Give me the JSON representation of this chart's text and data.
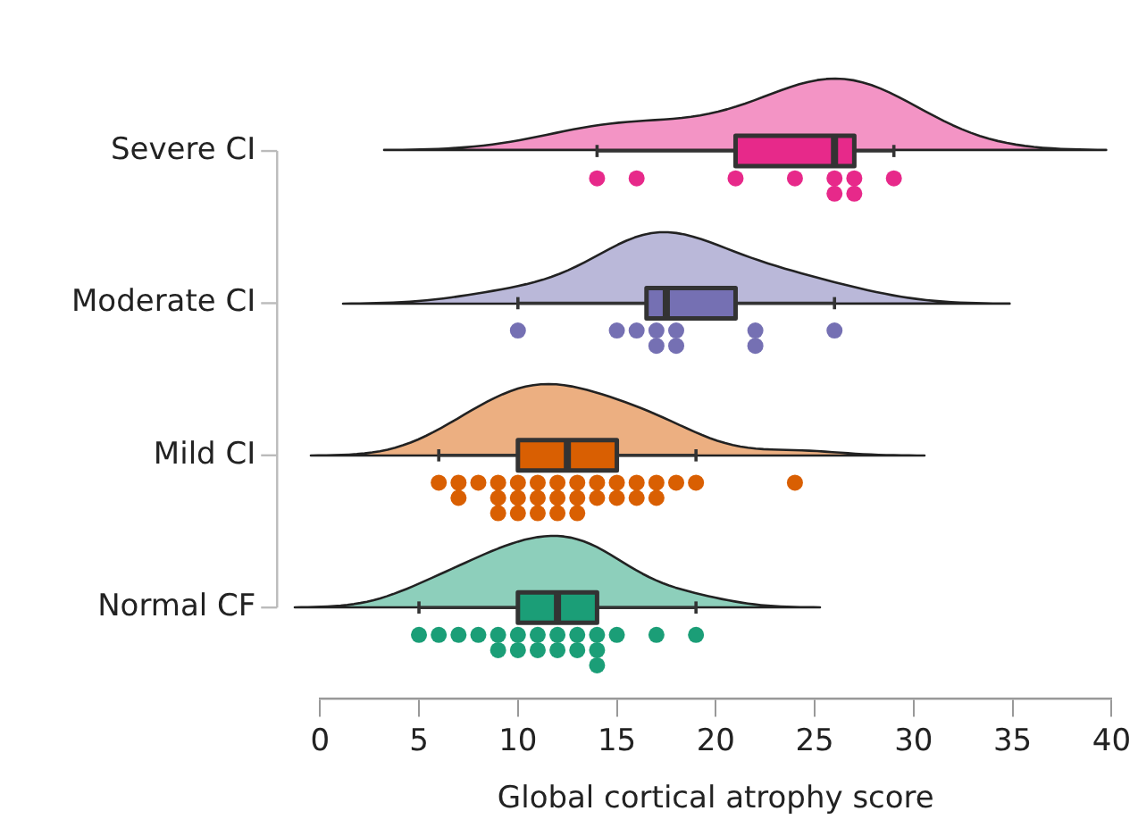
{
  "chart_data": {
    "type": "box",
    "orientation": "horizontal",
    "xlabel": "Global cortical atrophy score",
    "categories": [
      "Severe CI",
      "Moderate CI",
      "Mild CI",
      "Normal CF"
    ],
    "xlim": [
      0,
      40
    ],
    "xticks": [
      0,
      5,
      10,
      15,
      20,
      25,
      30,
      35,
      40
    ],
    "colors": [
      "#e7298a",
      "#7570b3",
      "#d95f02",
      "#1b9e77"
    ],
    "boxes": [
      {
        "low": 14,
        "q1": 21,
        "median": 26,
        "q3": 27,
        "high": 29
      },
      {
        "low": 10,
        "q1": 16.5,
        "median": 17.5,
        "q3": 21,
        "high": 26
      },
      {
        "low": 6,
        "q1": 10,
        "median": 12.5,
        "q3": 15,
        "high": 19
      },
      {
        "low": 5,
        "q1": 10,
        "median": 12,
        "q3": 14,
        "high": 19
      }
    ],
    "series": [
      {
        "type": "scatter",
        "color": "#e7298a",
        "x": [
          "Severe CI",
          "Severe CI",
          "Severe CI",
          "Severe CI",
          "Severe CI",
          "Severe CI",
          "Severe CI",
          "Severe CI",
          "Severe CI"
        ],
        "values": [
          14,
          16,
          21,
          24,
          26,
          26,
          27,
          27,
          29
        ]
      },
      {
        "type": "scatter",
        "color": "#7570b3",
        "x": [
          "Moderate CI",
          "Moderate CI",
          "Moderate CI",
          "Moderate CI",
          "Moderate CI",
          "Moderate CI",
          "Moderate CI",
          "Moderate CI",
          "Moderate CI",
          "Moderate CI"
        ],
        "values": [
          10,
          15,
          16,
          17,
          17,
          18,
          18,
          22,
          22,
          26
        ]
      },
      {
        "type": "scatter",
        "color": "#d95f02",
        "x": [
          "Mild CI",
          "Mild CI",
          "Mild CI",
          "Mild CI",
          "Mild CI",
          "Mild CI",
          "Mild CI",
          "Mild CI",
          "Mild CI",
          "Mild CI",
          "Mild CI",
          "Mild CI",
          "Mild CI",
          "Mild CI",
          "Mild CI",
          "Mild CI",
          "Mild CI",
          "Mild CI",
          "Mild CI",
          "Mild CI",
          "Mild CI",
          "Mild CI",
          "Mild CI",
          "Mild CI",
          "Mild CI",
          "Mild CI",
          "Mild CI",
          "Mild CI",
          "Mild CI",
          "Mild CI"
        ],
        "values": [
          6,
          7,
          7,
          8,
          9,
          9,
          9,
          10,
          10,
          10,
          11,
          11,
          11,
          12,
          12,
          12,
          13,
          13,
          13,
          14,
          14,
          15,
          15,
          16,
          16,
          17,
          17,
          18,
          19,
          24
        ]
      },
      {
        "type": "scatter",
        "color": "#1b9e77",
        "x": [
          "Normal CF",
          "Normal CF",
          "Normal CF",
          "Normal CF",
          "Normal CF",
          "Normal CF",
          "Normal CF",
          "Normal CF",
          "Normal CF",
          "Normal CF",
          "Normal CF",
          "Normal CF",
          "Normal CF",
          "Normal CF",
          "Normal CF",
          "Normal CF",
          "Normal CF",
          "Normal CF",
          "Normal CF",
          "Normal CF"
        ],
        "values": [
          5,
          6,
          7,
          8,
          9,
          9,
          10,
          10,
          11,
          11,
          12,
          12,
          13,
          13,
          14,
          14,
          14,
          15,
          17,
          19
        ]
      }
    ]
  }
}
